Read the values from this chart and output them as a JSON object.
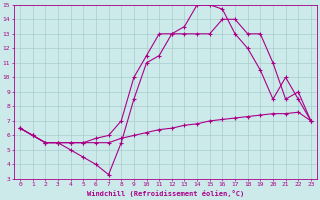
{
  "xlabel": "Windchill (Refroidissement éolien,°C)",
  "xlim": [
    -0.5,
    23.5
  ],
  "ylim": [
    3,
    15
  ],
  "xticks": [
    0,
    1,
    2,
    3,
    4,
    5,
    6,
    7,
    8,
    9,
    10,
    11,
    12,
    13,
    14,
    15,
    16,
    17,
    18,
    19,
    20,
    21,
    22,
    23
  ],
  "yticks": [
    3,
    4,
    5,
    6,
    7,
    8,
    9,
    10,
    11,
    12,
    13,
    14,
    15
  ],
  "bg_color": "#cceaea",
  "line_color": "#aa0088",
  "grid_color": "#aacccc",
  "line1_x": [
    0,
    1,
    2,
    3,
    4,
    5,
    6,
    7,
    8,
    9,
    10,
    11,
    12,
    13,
    14,
    15,
    16,
    17,
    18,
    19,
    20,
    21,
    22,
    23
  ],
  "line1_y": [
    6.5,
    6.0,
    5.5,
    5.5,
    5.0,
    4.5,
    4.0,
    3.3,
    5.5,
    8.5,
    11.0,
    11.5,
    13.0,
    13.0,
    13.0,
    13.0,
    14.0,
    14.0,
    13.0,
    13.0,
    11.0,
    8.5,
    9.0,
    7.0
  ],
  "line2_x": [
    0,
    1,
    2,
    3,
    4,
    5,
    6,
    7,
    8,
    9,
    10,
    11,
    12,
    13,
    14,
    15,
    16,
    17,
    18,
    19,
    20,
    21,
    22,
    23
  ],
  "line2_y": [
    6.5,
    6.0,
    5.5,
    5.5,
    5.5,
    5.5,
    5.5,
    5.5,
    5.8,
    6.0,
    6.2,
    6.4,
    6.5,
    6.7,
    6.8,
    7.0,
    7.1,
    7.2,
    7.3,
    7.4,
    7.5,
    7.5,
    7.6,
    7.0
  ],
  "line3_x": [
    0,
    1,
    2,
    3,
    4,
    5,
    6,
    7,
    8,
    9,
    10,
    11,
    12,
    13,
    14,
    15,
    16,
    17,
    18,
    19,
    20,
    21,
    22,
    23
  ],
  "line3_y": [
    6.5,
    6.0,
    5.5,
    5.5,
    5.5,
    5.5,
    5.8,
    6.0,
    7.0,
    10.0,
    11.5,
    13.0,
    13.0,
    13.5,
    15.0,
    15.0,
    14.7,
    13.0,
    12.0,
    10.5,
    8.5,
    10.0,
    8.5,
    7.0
  ]
}
